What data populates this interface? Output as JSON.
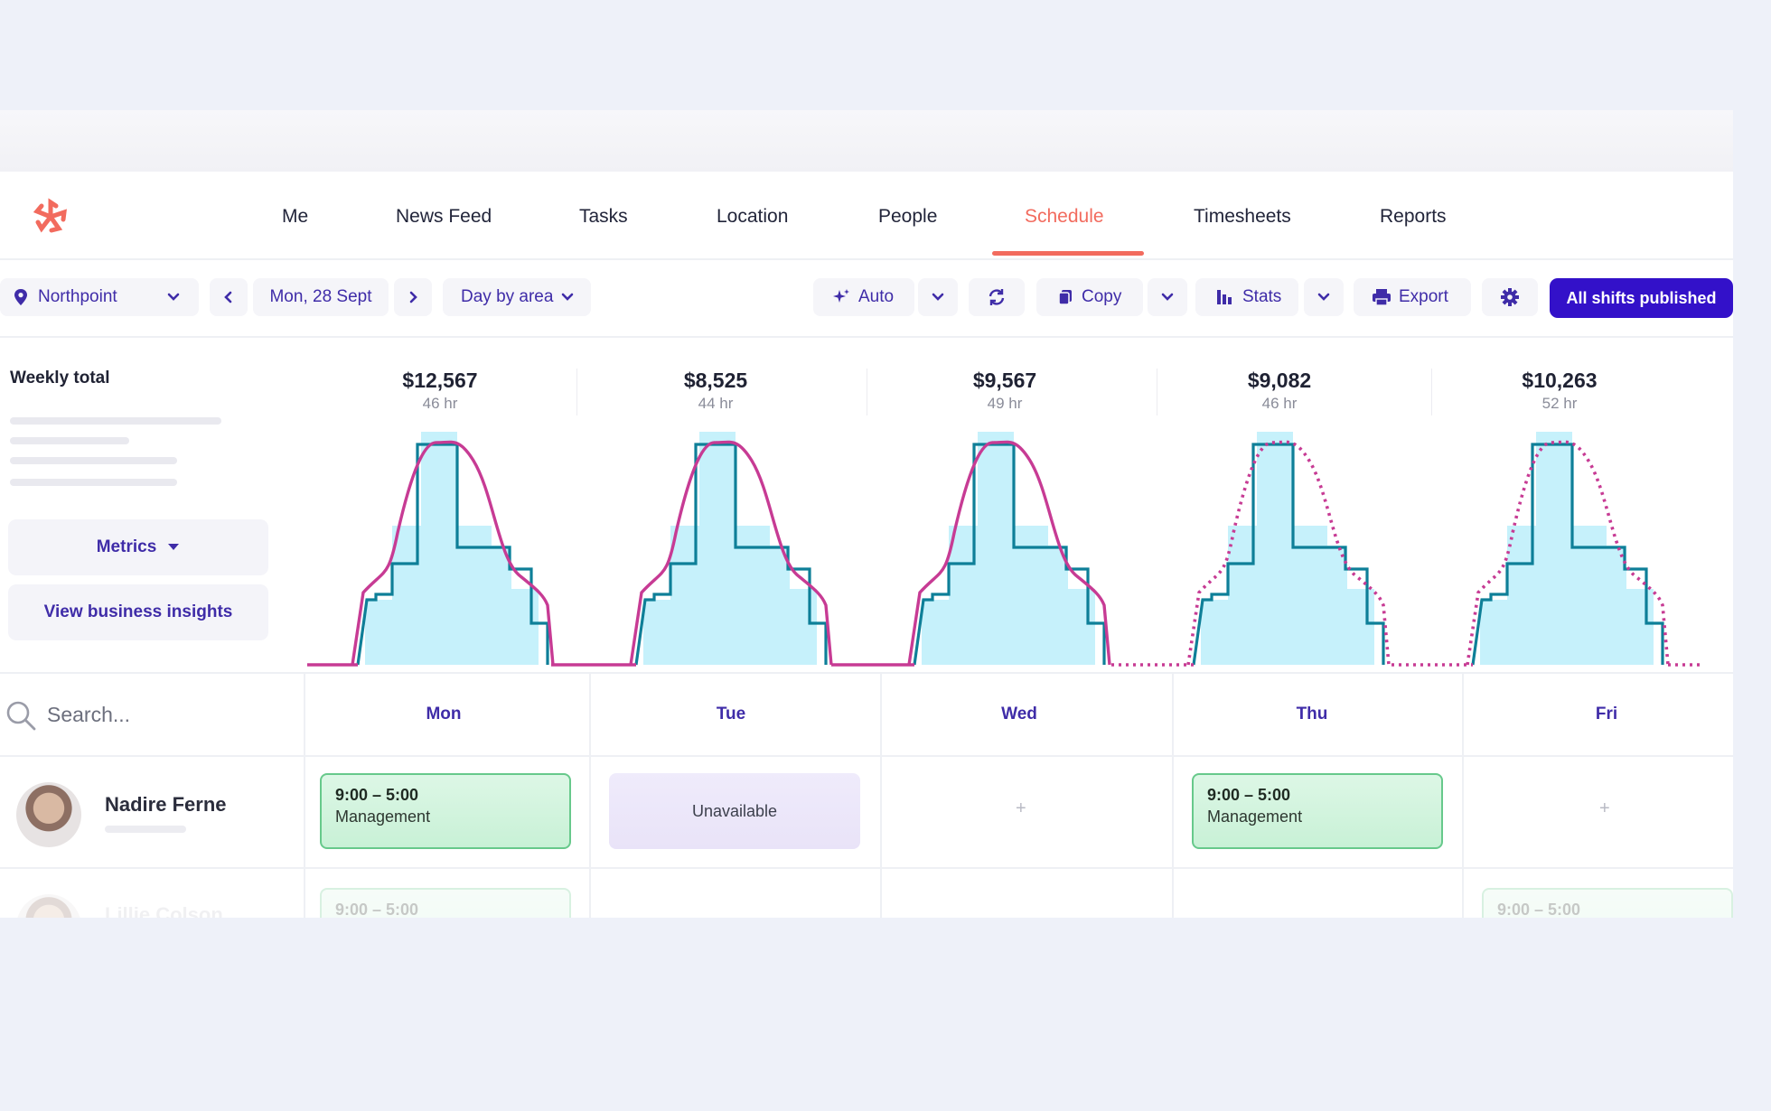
{
  "nav": {
    "items": [
      "Me",
      "News Feed",
      "Tasks",
      "Location",
      "People",
      "Schedule",
      "Timesheets",
      "Reports"
    ],
    "active": "Schedule"
  },
  "toolbar": {
    "location": "Northpoint",
    "date": "Mon, 28 Sept",
    "view": "Day by area",
    "auto": "Auto",
    "copy": "Copy",
    "stats": "Stats",
    "export": "Export",
    "publish": "All shifts published"
  },
  "sidebar": {
    "weekly_total_label": "Weekly total",
    "metrics_label": "Metrics",
    "insights_label": "View business insights"
  },
  "days": [
    {
      "amount": "$12,567",
      "hours": "46 hr",
      "name": "Mon"
    },
    {
      "amount": "$8,525",
      "hours": "44 hr",
      "name": "Tue"
    },
    {
      "amount": "$9,567",
      "hours": "49 hr",
      "name": "Wed"
    },
    {
      "amount": "$9,082",
      "hours": "46 hr",
      "name": "Thu"
    },
    {
      "amount": "$10,263",
      "hours": "52 hr",
      "name": "Fri"
    }
  ],
  "search": {
    "placeholder": "Search..."
  },
  "employees": [
    {
      "name": "Nadire Ferne",
      "shifts": {
        "mon": {
          "time": "9:00 – 5:00",
          "role": "Management"
        },
        "tue": {
          "status": "Unavailable"
        },
        "thu": {
          "time": "9:00 – 5:00",
          "role": "Management"
        }
      },
      "add_label": "+"
    },
    {
      "name": "Lillie Colson",
      "shifts": {
        "mon": {
          "time": "9:00 – 5:00"
        },
        "fri": {
          "time": "9:00 – 5:00"
        }
      }
    }
  ],
  "colors": {
    "accent": "#f26b5e",
    "primary": "#3311c9",
    "link": "#3f2ca8",
    "coverage_fill": "#c6f1fb",
    "scheduled_line": "#0e7f98",
    "forecast_line": "#c73b94"
  }
}
